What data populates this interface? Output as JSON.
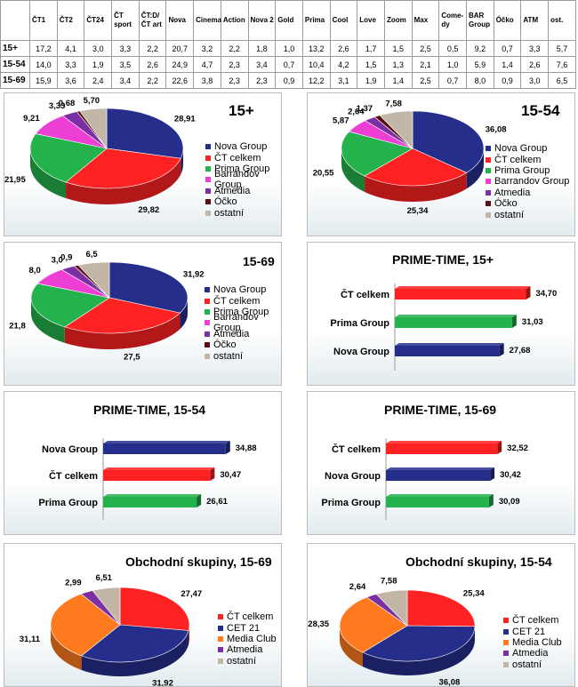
{
  "table": {
    "columns": [
      "ČT1",
      "ČT2",
      "ČT24",
      "ČT sport",
      "ČT:D/ ČT art",
      "Nova",
      "Cinema",
      "Action",
      "Nova 2",
      "Gold",
      "Prima",
      "Cool",
      "Love",
      "Zoom",
      "Max",
      "Come- dy",
      "BAR Group",
      "Óčko",
      "ATM",
      "ost."
    ],
    "rows": [
      {
        "label": "15+",
        "values": [
          "17,2",
          "4,1",
          "3,0",
          "3,3",
          "2,2",
          "20,7",
          "3,2",
          "2,2",
          "1,8",
          "1,0",
          "13,2",
          "2,6",
          "1,7",
          "1,5",
          "2,5",
          "0,5",
          "9,2",
          "0,7",
          "3,3",
          "5,7"
        ]
      },
      {
        "label": "15-54",
        "values": [
          "14,0",
          "3,3",
          "1,9",
          "3,5",
          "2,6",
          "24,9",
          "4,7",
          "2,3",
          "3,4",
          "0,7",
          "10,4",
          "4,2",
          "1,5",
          "1,3",
          "2,1",
          "1,0",
          "5,9",
          "1,4",
          "2,6",
          "7,6"
        ]
      },
      {
        "label": "15-69",
        "values": [
          "15,9",
          "3,6",
          "2,4",
          "3,4",
          "2,2",
          "22,6",
          "3,8",
          "2,3",
          "2,3",
          "0,9",
          "12,2",
          "3,1",
          "1,9",
          "1,4",
          "2,5",
          "0,7",
          "8,0",
          "0,9",
          "3,0",
          "6,5"
        ]
      }
    ]
  },
  "chart_data": [
    {
      "type": "pie",
      "title": "15+",
      "categories": [
        "Nova Group",
        "ČT celkem",
        "Prima Group",
        "Barrandov Group",
        "Atmedia",
        "Óčko",
        "ostatní"
      ],
      "values": [
        28.91,
        29.82,
        21.95,
        9.21,
        3.33,
        0.68,
        5.7
      ],
      "labels": [
        "28,91",
        "29,82",
        "21,95",
        "9,21",
        "3,33",
        "0,68",
        "5,70"
      ],
      "colors": [
        "#262e8c",
        "#ff2222",
        "#23b24b",
        "#ee3fd5",
        "#7a2fa3",
        "#5a1010",
        "#c2b6a6"
      ]
    },
    {
      "type": "pie",
      "title": "15-54",
      "categories": [
        "Nova Group",
        "ČT celkem",
        "Prima Group",
        "Barrandov Group",
        "Atmedia",
        "Óčko",
        "ostatní"
      ],
      "values": [
        36.08,
        25.34,
        20.55,
        5.87,
        2.64,
        1.37,
        7.58
      ],
      "labels": [
        "36,08",
        "25,34",
        "20,55",
        "5,87",
        "2,64",
        "1,37",
        "7,58"
      ],
      "colors": [
        "#262e8c",
        "#ff2222",
        "#23b24b",
        "#ee3fd5",
        "#7a2fa3",
        "#5a1010",
        "#c2b6a6"
      ]
    },
    {
      "type": "pie",
      "title": "15-69",
      "categories": [
        "Nova Group",
        "ČT celkem",
        "Prima Group",
        "Barrandov Group",
        "Atmedia",
        "Óčko",
        "ostatní"
      ],
      "values": [
        31.92,
        27.5,
        21.8,
        8.0,
        3.0,
        0.9,
        6.5
      ],
      "labels": [
        "31,92",
        "27,5",
        "21,8",
        "8,0",
        "3,0",
        "0,9",
        "6,5"
      ],
      "colors": [
        "#262e8c",
        "#ff2222",
        "#23b24b",
        "#ee3fd5",
        "#7a2fa3",
        "#5a1010",
        "#c2b6a6"
      ]
    },
    {
      "type": "bar",
      "title": "PRIME-TIME, 15+",
      "categories": [
        "ČT celkem",
        "Prima Group",
        "Nova Group"
      ],
      "values": [
        34.7,
        31.03,
        27.68
      ],
      "labels": [
        "34,70",
        "31,03",
        "27,68"
      ],
      "colors": [
        "#ff2222",
        "#23b24b",
        "#262e8c"
      ]
    },
    {
      "type": "bar",
      "title": "PRIME-TIME, 15-54",
      "categories": [
        "Nova Group",
        "ČT celkem",
        "Prima Group"
      ],
      "values": [
        34.88,
        30.47,
        26.61
      ],
      "labels": [
        "34,88",
        "30,47",
        "26,61"
      ],
      "colors": [
        "#262e8c",
        "#ff2222",
        "#23b24b"
      ]
    },
    {
      "type": "bar",
      "title": "PRIME-TIME, 15-69",
      "categories": [
        "ČT celkem",
        "Nova Group",
        "Prima Group"
      ],
      "values": [
        32.52,
        30.42,
        30.09
      ],
      "labels": [
        "32,52",
        "30,42",
        "30,09"
      ],
      "colors": [
        "#ff2222",
        "#262e8c",
        "#23b24b"
      ]
    },
    {
      "type": "pie",
      "title": "Obchodní skupiny, 15-69",
      "categories": [
        "ČT celkem",
        "CET 21",
        "Media Club",
        "Atmedia",
        "ostatní"
      ],
      "values": [
        27.47,
        31.92,
        31.11,
        2.99,
        6.51
      ],
      "labels": [
        "27,47",
        "31,92",
        "31,11",
        "2,99",
        "6,51"
      ],
      "colors": [
        "#ff2222",
        "#262e8c",
        "#ff7a1e",
        "#7a2fa3",
        "#c2b6a6"
      ]
    },
    {
      "type": "pie",
      "title": "Obchodní skupiny, 15-54",
      "categories": [
        "ČT celkem",
        "CET 21",
        "Media Club",
        "Atmedia",
        "ostatní"
      ],
      "values": [
        25.34,
        36.08,
        28.35,
        2.64,
        7.58
      ],
      "labels": [
        "25,34",
        "36,08",
        "28,35",
        "2,64",
        "7,58"
      ],
      "colors": [
        "#ff2222",
        "#262e8c",
        "#ff7a1e",
        "#7a2fa3",
        "#c2b6a6"
      ]
    }
  ]
}
